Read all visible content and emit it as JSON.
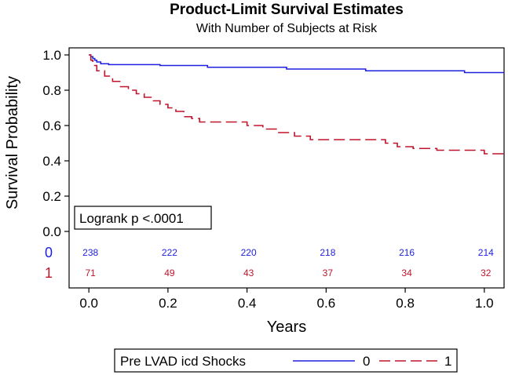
{
  "chart_data": {
    "type": "line",
    "title": "Product-Limit Survival Estimates",
    "subtitle": "With Number of Subjects at Risk",
    "xlabel": "Years",
    "ylabel": "Survival Probability",
    "xlim": [
      -0.05,
      1.05
    ],
    "ylim": [
      0.0,
      1.0
    ],
    "xticks": [
      "0.0",
      "0.2",
      "0.4",
      "0.6",
      "0.8",
      "1.0"
    ],
    "yticks": [
      "0.0",
      "0.2",
      "0.4",
      "0.6",
      "0.8",
      "1.0"
    ],
    "annotation": "Logrank p <.0001",
    "legend_title": "Pre LVAD icd Shocks",
    "series": [
      {
        "name": "0",
        "color": "#1f1fe0",
        "dash": "solid",
        "x": [
          0.0,
          0.005,
          0.01,
          0.015,
          0.02,
          0.03,
          0.05,
          0.18,
          0.3,
          0.5,
          0.7,
          0.95,
          1.05
        ],
        "y": [
          1.0,
          0.99,
          0.98,
          0.97,
          0.96,
          0.95,
          0.945,
          0.94,
          0.93,
          0.92,
          0.91,
          0.9,
          0.9
        ]
      },
      {
        "name": "1",
        "color": "#c0142a",
        "dash": "dashed",
        "x": [
          0.0,
          0.005,
          0.01,
          0.02,
          0.04,
          0.06,
          0.08,
          0.1,
          0.12,
          0.14,
          0.16,
          0.18,
          0.2,
          0.22,
          0.24,
          0.26,
          0.28,
          0.3,
          0.4,
          0.44,
          0.48,
          0.52,
          0.56,
          0.7,
          0.75,
          0.78,
          0.82,
          0.88,
          1.0,
          1.05
        ],
        "y": [
          1.0,
          0.97,
          0.94,
          0.91,
          0.88,
          0.85,
          0.82,
          0.8,
          0.78,
          0.76,
          0.74,
          0.72,
          0.7,
          0.68,
          0.65,
          0.64,
          0.62,
          0.62,
          0.6,
          0.58,
          0.56,
          0.54,
          0.52,
          0.52,
          0.5,
          0.48,
          0.47,
          0.46,
          0.44,
          0.44
        ]
      }
    ],
    "risk_table": {
      "times": [
        0.0,
        0.2,
        0.4,
        0.6,
        0.8,
        1.0
      ],
      "rows": [
        {
          "label": "0",
          "color": "#1f1fe0",
          "counts": [
            "238",
            "222",
            "220",
            "218",
            "216",
            "214"
          ]
        },
        {
          "label": "1",
          "color": "#c0142a",
          "counts": [
            "71",
            "49",
            "43",
            "37",
            "34",
            "32"
          ]
        }
      ]
    }
  }
}
